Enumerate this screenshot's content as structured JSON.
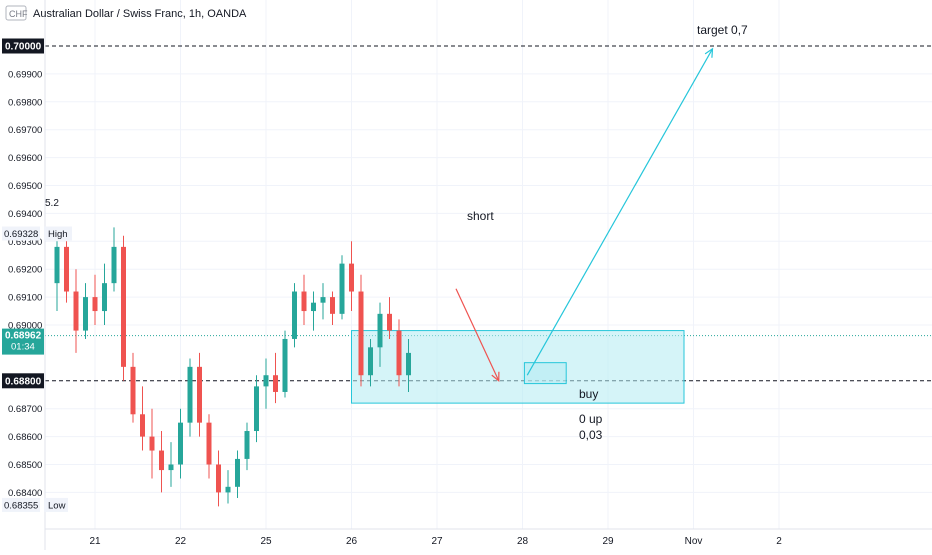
{
  "header": {
    "currency": "CHF",
    "title": "Australian Dollar / Swiss Franc, 1h, OANDA"
  },
  "colors": {
    "up": "#26a69a",
    "down": "#ef5350",
    "zone_fill": "#b2ebf2",
    "zone_stroke": "#26c6da",
    "arrow": "#26c6da",
    "short_arrow": "#ef5350",
    "price_badge": "#26a69a",
    "axis_text": "#131722",
    "grid": "#f0f3fa"
  },
  "annotations": {
    "target": "target  0,7",
    "short": "short",
    "buy": "buy",
    "up_line1": "0 up",
    "up_line2": "0,03",
    "indicator": "5.2"
  },
  "chart_data": {
    "type": "candlestick",
    "title": "Australian Dollar / Swiss Franc, 1h, OANDA",
    "y_ticks": [
      "0.69900",
      "0.69800",
      "0.69700",
      "0.69600",
      "0.69500",
      "0.69400",
      "0.69300",
      "0.69200",
      "0.69100",
      "0.69000",
      "0.68700",
      "0.68600",
      "0.68500",
      "0.68400"
    ],
    "y_tick_values": [
      0.699,
      0.698,
      0.697,
      0.696,
      0.695,
      0.694,
      0.693,
      0.692,
      0.691,
      0.69,
      0.687,
      0.686,
      0.685,
      0.684
    ],
    "x_ticks": [
      "21",
      "22",
      "25",
      "26",
      "27",
      "28",
      "29",
      "Nov",
      "2"
    ],
    "x_tick_index": [
      4,
      13,
      22,
      31,
      40,
      49,
      58,
      67,
      76
    ],
    "price_labels": {
      "target_price": "0.70000",
      "high": {
        "value": "0.69328",
        "label": "High"
      },
      "current": {
        "value": "0.68962",
        "countdown": "01:34"
      },
      "support": "0.68800",
      "low": {
        "value": "0.68355",
        "label": "Low"
      }
    },
    "levels": {
      "target": 0.7,
      "support": 0.688,
      "current": 0.68962,
      "high": 0.69328,
      "low": 0.68355
    },
    "candles": [
      [
        0.6915,
        0.693,
        0.6905,
        0.6928
      ],
      [
        0.6928,
        0.693,
        0.6908,
        0.6912
      ],
      [
        0.6912,
        0.692,
        0.689,
        0.6898
      ],
      [
        0.6898,
        0.6915,
        0.6895,
        0.691
      ],
      [
        0.691,
        0.6918,
        0.69,
        0.6905
      ],
      [
        0.6905,
        0.6922,
        0.69,
        0.6915
      ],
      [
        0.6915,
        0.6935,
        0.6912,
        0.6928
      ],
      [
        0.6928,
        0.6932,
        0.688,
        0.6885
      ],
      [
        0.6885,
        0.689,
        0.6865,
        0.6868
      ],
      [
        0.6868,
        0.6878,
        0.6855,
        0.686
      ],
      [
        0.686,
        0.687,
        0.6845,
        0.6855
      ],
      [
        0.6855,
        0.6862,
        0.684,
        0.6848
      ],
      [
        0.6848,
        0.6858,
        0.6842,
        0.685
      ],
      [
        0.685,
        0.687,
        0.6845,
        0.6865
      ],
      [
        0.6865,
        0.6888,
        0.686,
        0.6885
      ],
      [
        0.6885,
        0.689,
        0.686,
        0.6865
      ],
      [
        0.6865,
        0.6868,
        0.6845,
        0.685
      ],
      [
        0.685,
        0.6855,
        0.6835,
        0.684
      ],
      [
        0.684,
        0.6848,
        0.6836,
        0.6842
      ],
      [
        0.6842,
        0.6855,
        0.6838,
        0.6852
      ],
      [
        0.6852,
        0.6865,
        0.6848,
        0.6862
      ],
      [
        0.6862,
        0.6882,
        0.6858,
        0.6878
      ],
      [
        0.6878,
        0.6888,
        0.687,
        0.6882
      ],
      [
        0.6882,
        0.689,
        0.6872,
        0.6876
      ],
      [
        0.6876,
        0.6898,
        0.6874,
        0.6895
      ],
      [
        0.6895,
        0.6915,
        0.6892,
        0.6912
      ],
      [
        0.6912,
        0.6918,
        0.69,
        0.6905
      ],
      [
        0.6905,
        0.6912,
        0.6898,
        0.6908
      ],
      [
        0.6908,
        0.6915,
        0.6902,
        0.691
      ],
      [
        0.691,
        0.6912,
        0.69,
        0.6904
      ],
      [
        0.6904,
        0.6925,
        0.6902,
        0.6922
      ],
      [
        0.6922,
        0.693,
        0.6905,
        0.6912
      ],
      [
        0.6912,
        0.6918,
        0.6878,
        0.6882
      ],
      [
        0.6882,
        0.6895,
        0.6878,
        0.6892
      ],
      [
        0.6892,
        0.6908,
        0.6885,
        0.6904
      ],
      [
        0.6904,
        0.691,
        0.6895,
        0.6898
      ],
      [
        0.6898,
        0.6902,
        0.6878,
        0.6882
      ],
      [
        0.6882,
        0.6895,
        0.6876,
        0.689
      ]
    ],
    "zones": [
      {
        "name": "demand",
        "x_start": 31.0,
        "x_end": 66.0,
        "y_low": 0.6872,
        "y_high": 0.6898
      },
      {
        "name": "buy",
        "x_start": 49.2,
        "x_end": 53.6,
        "y_low": 0.6879,
        "y_high": 0.68865
      }
    ],
    "arrows": [
      {
        "name": "target-arrow",
        "from": [
          49.5,
          0.6882
        ],
        "to": [
          69.0,
          0.6999
        ]
      },
      {
        "name": "short-arrow",
        "from": [
          42.0,
          0.6913
        ],
        "to": [
          46.5,
          0.688
        ]
      }
    ]
  }
}
